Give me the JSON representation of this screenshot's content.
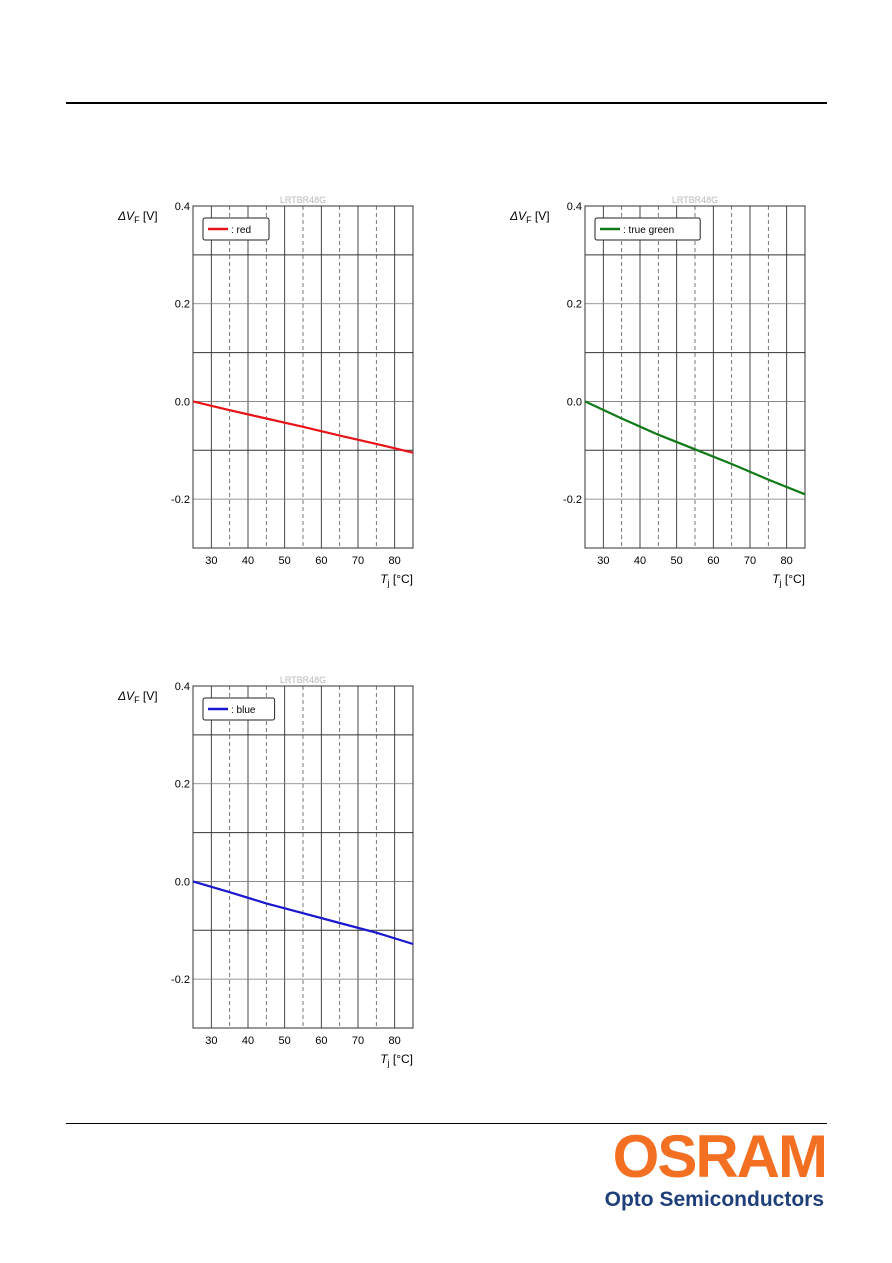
{
  "chart_data": [
    {
      "type": "line",
      "watermark": "LRTBR48G",
      "ylabel": "ΔV",
      "ylabel_sub": "F",
      "ylabel_unit": "[V]",
      "xlabel": "T",
      "xlabel_sub": "j",
      "xlabel_unit": "[°C]",
      "xlim": [
        25,
        85
      ],
      "ylim": [
        -0.3,
        0.4
      ],
      "xticks": [
        30,
        40,
        50,
        60,
        70,
        80
      ],
      "yticks": [
        0.4,
        0.2,
        0.0,
        -0.2
      ],
      "ytick_labels": [
        "0.4",
        "0.2",
        "0.0",
        "-0.2"
      ],
      "legend_position": "top-left",
      "series": [
        {
          "name": ": red",
          "color": "#e8141a",
          "x": [
            25,
            35,
            45,
            55,
            65,
            75,
            85
          ],
          "y": [
            0.0,
            -0.018,
            -0.035,
            -0.052,
            -0.07,
            -0.087,
            -0.105
          ]
        }
      ]
    },
    {
      "type": "line",
      "watermark": "LRTBR48G",
      "ylabel": "ΔV",
      "ylabel_sub": "F",
      "ylabel_unit": "[V]",
      "xlabel": "T",
      "xlabel_sub": "j",
      "xlabel_unit": "[°C]",
      "xlim": [
        25,
        85
      ],
      "ylim": [
        -0.3,
        0.4
      ],
      "xticks": [
        30,
        40,
        50,
        60,
        70,
        80
      ],
      "yticks": [
        0.4,
        0.2,
        0.0,
        -0.2
      ],
      "ytick_labels": [
        "0.4",
        "0.2",
        "0.0",
        "-0.2"
      ],
      "legend_position": "top-left",
      "series": [
        {
          "name": ": true green",
          "color": "#0f7a17",
          "x": [
            25,
            35,
            45,
            55,
            65,
            75,
            85
          ],
          "y": [
            0.0,
            -0.035,
            -0.068,
            -0.098,
            -0.128,
            -0.16,
            -0.19
          ]
        }
      ]
    },
    {
      "type": "line",
      "watermark": "LRTBR48G",
      "ylabel": "ΔV",
      "ylabel_sub": "F",
      "ylabel_unit": "[V]",
      "xlabel": "T",
      "xlabel_sub": "j",
      "xlabel_unit": "[°C]",
      "xlim": [
        25,
        85
      ],
      "ylim": [
        -0.3,
        0.4
      ],
      "xticks": [
        30,
        40,
        50,
        60,
        70,
        80
      ],
      "yticks": [
        0.4,
        0.2,
        0.0,
        -0.2
      ],
      "ytick_labels": [
        "0.4",
        "0.2",
        "0.0",
        "-0.2"
      ],
      "legend_position": "top-left",
      "series": [
        {
          "name": ": blue",
          "color": "#1a17cf",
          "x": [
            25,
            35,
            45,
            55,
            65,
            75,
            85
          ],
          "y": [
            0.0,
            -0.022,
            -0.045,
            -0.065,
            -0.085,
            -0.105,
            -0.128
          ]
        }
      ]
    }
  ],
  "branding": {
    "logo_text": "OSRAM",
    "logo_subtitle": "Opto Semiconductors",
    "logo_color": "#f36f21",
    "subtitle_color": "#1f3f7a"
  }
}
